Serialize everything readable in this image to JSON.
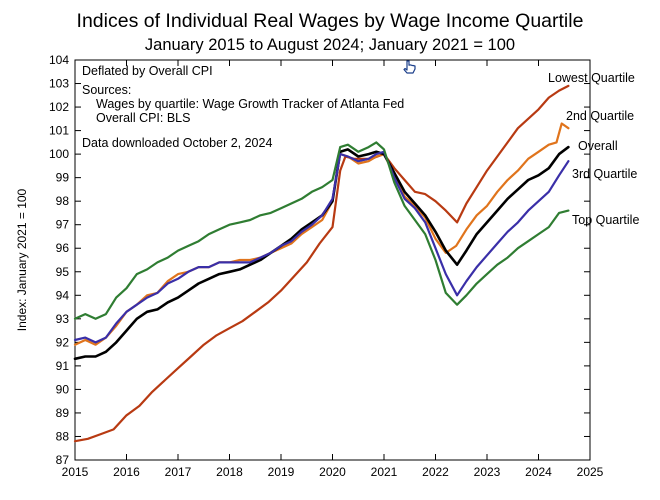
{
  "chart_data": {
    "type": "line",
    "title": "Indices of Individual Real Wages by Wage Income Quartile",
    "subtitle": "January 2015 to August 2024; January 2021 = 100",
    "ylabel": "Index:  January 2021 = 100",
    "xlabel": "",
    "xlim": [
      2015,
      2025
    ],
    "ylim": [
      87,
      104
    ],
    "x_ticks": [
      "2015",
      "2016",
      "2017",
      "2018",
      "2019",
      "2020",
      "2021",
      "2022",
      "2023",
      "2024",
      "2025"
    ],
    "y_ticks": [
      "87",
      "88",
      "89",
      "90",
      "91",
      "92",
      "93",
      "94",
      "95",
      "96",
      "97",
      "98",
      "99",
      "100",
      "101",
      "102",
      "103",
      "104"
    ],
    "grid": false,
    "annotations": {
      "deflator": "Deflated by Overall CPI",
      "sources_title": "Sources:",
      "source_wages": "Wages by quartile:  Wage Growth Tracker of Atlanta Fed",
      "source_cpi": "Overall CPI:  BLS",
      "downloaded": "Data downloaded October 2, 2024"
    },
    "series": [
      {
        "name": "Lowest Quartile",
        "color": "#b83a12",
        "points": [
          [
            2015.0,
            87.8
          ],
          [
            2015.25,
            87.9
          ],
          [
            2015.5,
            88.1
          ],
          [
            2015.75,
            88.3
          ],
          [
            2016.0,
            88.9
          ],
          [
            2016.25,
            89.3
          ],
          [
            2016.5,
            89.9
          ],
          [
            2016.75,
            90.4
          ],
          [
            2017.0,
            90.9
          ],
          [
            2017.25,
            91.4
          ],
          [
            2017.5,
            91.9
          ],
          [
            2017.75,
            92.3
          ],
          [
            2018.0,
            92.6
          ],
          [
            2018.25,
            92.9
          ],
          [
            2018.5,
            93.3
          ],
          [
            2018.75,
            93.7
          ],
          [
            2019.0,
            94.2
          ],
          [
            2019.25,
            94.8
          ],
          [
            2019.5,
            95.4
          ],
          [
            2019.75,
            96.2
          ],
          [
            2020.0,
            96.9
          ],
          [
            2020.15,
            99.3
          ],
          [
            2020.25,
            99.9
          ],
          [
            2020.42,
            99.8
          ],
          [
            2020.6,
            99.8
          ],
          [
            2020.75,
            99.8
          ],
          [
            2021.0,
            100.0
          ],
          [
            2021.2,
            99.4
          ],
          [
            2021.4,
            98.9
          ],
          [
            2021.6,
            98.4
          ],
          [
            2021.8,
            98.3
          ],
          [
            2022.0,
            98.0
          ],
          [
            2022.2,
            97.6
          ],
          [
            2022.42,
            97.1
          ],
          [
            2022.6,
            97.9
          ],
          [
            2022.8,
            98.6
          ],
          [
            2023.0,
            99.3
          ],
          [
            2023.2,
            99.9
          ],
          [
            2023.4,
            100.5
          ],
          [
            2023.6,
            101.1
          ],
          [
            2023.8,
            101.5
          ],
          [
            2024.0,
            101.9
          ],
          [
            2024.2,
            102.4
          ],
          [
            2024.4,
            102.7
          ],
          [
            2024.58,
            102.9
          ]
        ]
      },
      {
        "name": "2nd Quartile",
        "color": "#e0741c",
        "points": [
          [
            2015.0,
            91.9
          ],
          [
            2015.2,
            92.1
          ],
          [
            2015.4,
            91.9
          ],
          [
            2015.6,
            92.2
          ],
          [
            2015.8,
            92.7
          ],
          [
            2016.0,
            93.3
          ],
          [
            2016.2,
            93.6
          ],
          [
            2016.4,
            94.0
          ],
          [
            2016.6,
            94.1
          ],
          [
            2016.8,
            94.6
          ],
          [
            2017.0,
            94.9
          ],
          [
            2017.2,
            95.0
          ],
          [
            2017.4,
            95.2
          ],
          [
            2017.6,
            95.2
          ],
          [
            2017.8,
            95.4
          ],
          [
            2018.0,
            95.4
          ],
          [
            2018.2,
            95.5
          ],
          [
            2018.4,
            95.5
          ],
          [
            2018.6,
            95.6
          ],
          [
            2018.8,
            95.8
          ],
          [
            2019.0,
            96.0
          ],
          [
            2019.2,
            96.2
          ],
          [
            2019.4,
            96.6
          ],
          [
            2019.6,
            96.9
          ],
          [
            2019.8,
            97.2
          ],
          [
            2020.0,
            98.0
          ],
          [
            2020.15,
            100.0
          ],
          [
            2020.3,
            99.9
          ],
          [
            2020.5,
            99.6
          ],
          [
            2020.7,
            99.7
          ],
          [
            2020.85,
            99.9
          ],
          [
            2021.0,
            100.0
          ],
          [
            2021.2,
            99.1
          ],
          [
            2021.4,
            98.2
          ],
          [
            2021.6,
            97.8
          ],
          [
            2021.8,
            97.3
          ],
          [
            2022.0,
            96.4
          ],
          [
            2022.2,
            95.8
          ],
          [
            2022.4,
            96.1
          ],
          [
            2022.6,
            96.8
          ],
          [
            2022.8,
            97.4
          ],
          [
            2023.0,
            97.8
          ],
          [
            2023.2,
            98.4
          ],
          [
            2023.4,
            98.9
          ],
          [
            2023.6,
            99.3
          ],
          [
            2023.8,
            99.8
          ],
          [
            2024.0,
            100.1
          ],
          [
            2024.2,
            100.4
          ],
          [
            2024.35,
            100.5
          ],
          [
            2024.45,
            101.3
          ],
          [
            2024.58,
            101.1
          ]
        ]
      },
      {
        "name": "Overall",
        "color": "#000000",
        "points": [
          [
            2015.0,
            91.3
          ],
          [
            2015.2,
            91.4
          ],
          [
            2015.4,
            91.4
          ],
          [
            2015.6,
            91.6
          ],
          [
            2015.8,
            92.0
          ],
          [
            2016.0,
            92.5
          ],
          [
            2016.2,
            93.0
          ],
          [
            2016.4,
            93.3
          ],
          [
            2016.6,
            93.4
          ],
          [
            2016.8,
            93.7
          ],
          [
            2017.0,
            93.9
          ],
          [
            2017.2,
            94.2
          ],
          [
            2017.4,
            94.5
          ],
          [
            2017.6,
            94.7
          ],
          [
            2017.8,
            94.9
          ],
          [
            2018.0,
            95.0
          ],
          [
            2018.2,
            95.1
          ],
          [
            2018.4,
            95.3
          ],
          [
            2018.6,
            95.5
          ],
          [
            2018.8,
            95.8
          ],
          [
            2019.0,
            96.1
          ],
          [
            2019.2,
            96.4
          ],
          [
            2019.4,
            96.8
          ],
          [
            2019.6,
            97.1
          ],
          [
            2019.8,
            97.4
          ],
          [
            2020.0,
            98.0
          ],
          [
            2020.15,
            100.1
          ],
          [
            2020.3,
            100.2
          ],
          [
            2020.5,
            99.9
          ],
          [
            2020.7,
            100.0
          ],
          [
            2020.85,
            100.1
          ],
          [
            2021.0,
            100.0
          ],
          [
            2021.2,
            99.2
          ],
          [
            2021.4,
            98.4
          ],
          [
            2021.6,
            97.9
          ],
          [
            2021.8,
            97.4
          ],
          [
            2022.0,
            96.7
          ],
          [
            2022.2,
            95.9
          ],
          [
            2022.42,
            95.3
          ],
          [
            2022.6,
            95.9
          ],
          [
            2022.8,
            96.6
          ],
          [
            2023.0,
            97.1
          ],
          [
            2023.2,
            97.6
          ],
          [
            2023.4,
            98.1
          ],
          [
            2023.6,
            98.5
          ],
          [
            2023.8,
            98.9
          ],
          [
            2024.0,
            99.1
          ],
          [
            2024.2,
            99.4
          ],
          [
            2024.4,
            100.0
          ],
          [
            2024.58,
            100.3
          ]
        ]
      },
      {
        "name": "3rd Quartile",
        "color": "#3a2fa8",
        "points": [
          [
            2015.0,
            92.1
          ],
          [
            2015.2,
            92.2
          ],
          [
            2015.4,
            92.0
          ],
          [
            2015.6,
            92.2
          ],
          [
            2015.8,
            92.8
          ],
          [
            2016.0,
            93.3
          ],
          [
            2016.2,
            93.6
          ],
          [
            2016.4,
            93.9
          ],
          [
            2016.6,
            94.1
          ],
          [
            2016.8,
            94.5
          ],
          [
            2017.0,
            94.7
          ],
          [
            2017.2,
            95.0
          ],
          [
            2017.4,
            95.2
          ],
          [
            2017.6,
            95.2
          ],
          [
            2017.8,
            95.4
          ],
          [
            2018.0,
            95.4
          ],
          [
            2018.2,
            95.4
          ],
          [
            2018.4,
            95.4
          ],
          [
            2018.6,
            95.6
          ],
          [
            2018.8,
            95.8
          ],
          [
            2019.0,
            96.1
          ],
          [
            2019.2,
            96.3
          ],
          [
            2019.4,
            96.7
          ],
          [
            2019.6,
            97.0
          ],
          [
            2019.8,
            97.4
          ],
          [
            2020.0,
            98.1
          ],
          [
            2020.15,
            100.0
          ],
          [
            2020.3,
            99.9
          ],
          [
            2020.5,
            99.7
          ],
          [
            2020.7,
            99.8
          ],
          [
            2020.85,
            100.0
          ],
          [
            2021.0,
            100.1
          ],
          [
            2021.2,
            99.0
          ],
          [
            2021.4,
            98.1
          ],
          [
            2021.6,
            97.7
          ],
          [
            2021.8,
            97.1
          ],
          [
            2022.0,
            96.0
          ],
          [
            2022.2,
            94.9
          ],
          [
            2022.42,
            94.0
          ],
          [
            2022.6,
            94.6
          ],
          [
            2022.8,
            95.2
          ],
          [
            2023.0,
            95.7
          ],
          [
            2023.2,
            96.2
          ],
          [
            2023.4,
            96.7
          ],
          [
            2023.6,
            97.1
          ],
          [
            2023.8,
            97.6
          ],
          [
            2024.0,
            98.0
          ],
          [
            2024.2,
            98.4
          ],
          [
            2024.4,
            99.1
          ],
          [
            2024.58,
            99.7
          ]
        ]
      },
      {
        "name": "Top Quartile",
        "color": "#2f7d32",
        "points": [
          [
            2015.0,
            93.0
          ],
          [
            2015.2,
            93.2
          ],
          [
            2015.4,
            93.0
          ],
          [
            2015.6,
            93.2
          ],
          [
            2015.8,
            93.9
          ],
          [
            2016.0,
            94.3
          ],
          [
            2016.2,
            94.9
          ],
          [
            2016.4,
            95.1
          ],
          [
            2016.6,
            95.4
          ],
          [
            2016.8,
            95.6
          ],
          [
            2017.0,
            95.9
          ],
          [
            2017.2,
            96.1
          ],
          [
            2017.4,
            96.3
          ],
          [
            2017.6,
            96.6
          ],
          [
            2017.8,
            96.8
          ],
          [
            2018.0,
            97.0
          ],
          [
            2018.2,
            97.1
          ],
          [
            2018.4,
            97.2
          ],
          [
            2018.6,
            97.4
          ],
          [
            2018.8,
            97.5
          ],
          [
            2019.0,
            97.7
          ],
          [
            2019.2,
            97.9
          ],
          [
            2019.4,
            98.1
          ],
          [
            2019.6,
            98.4
          ],
          [
            2019.8,
            98.6
          ],
          [
            2020.0,
            98.9
          ],
          [
            2020.15,
            100.3
          ],
          [
            2020.3,
            100.4
          ],
          [
            2020.5,
            100.1
          ],
          [
            2020.7,
            100.3
          ],
          [
            2020.85,
            100.5
          ],
          [
            2021.0,
            100.2
          ],
          [
            2021.2,
            98.8
          ],
          [
            2021.4,
            97.8
          ],
          [
            2021.6,
            97.2
          ],
          [
            2021.8,
            96.6
          ],
          [
            2022.0,
            95.5
          ],
          [
            2022.2,
            94.1
          ],
          [
            2022.42,
            93.6
          ],
          [
            2022.6,
            94.0
          ],
          [
            2022.8,
            94.5
          ],
          [
            2023.0,
            94.9
          ],
          [
            2023.2,
            95.3
          ],
          [
            2023.4,
            95.6
          ],
          [
            2023.6,
            96.0
          ],
          [
            2023.8,
            96.3
          ],
          [
            2024.0,
            96.6
          ],
          [
            2024.2,
            96.9
          ],
          [
            2024.4,
            97.5
          ],
          [
            2024.58,
            97.6
          ]
        ]
      }
    ]
  }
}
